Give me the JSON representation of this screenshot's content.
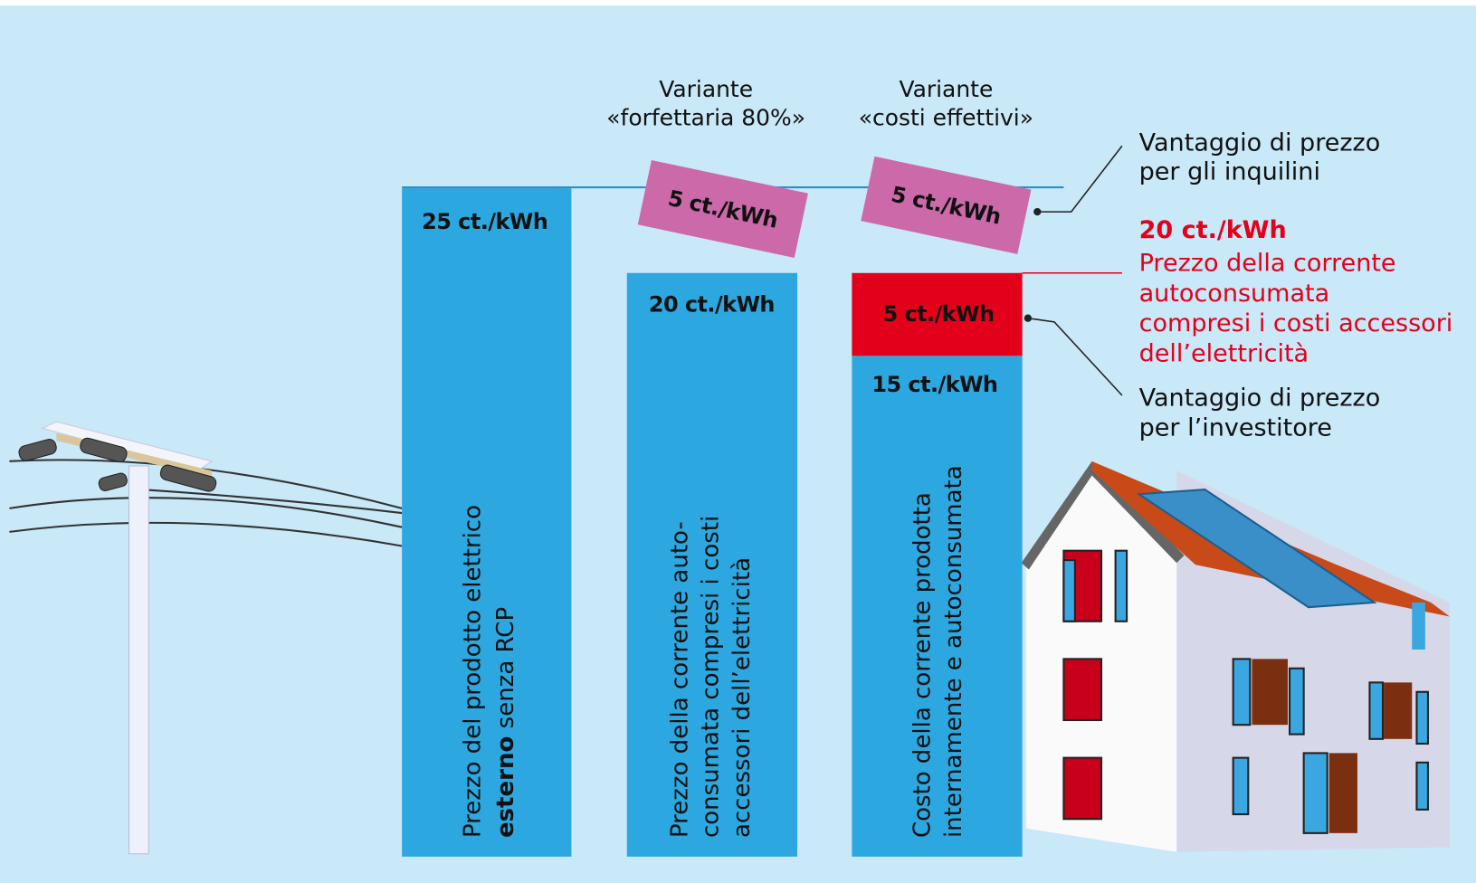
{
  "headers": [
    {
      "lines": [
        "Variante",
        "«forfettaria 80%»"
      ]
    },
    {
      "lines": [
        "Variante",
        "«costi effettivi»"
      ]
    }
  ],
  "bars": [
    {
      "value_label": "25 ct./kWh",
      "caption": [
        "Prezzo del prodotto elettrico"
      ],
      "caption_bold": "esterno",
      "caption_rest": "senza RCP"
    },
    {
      "value_label": "20 ct./kWh",
      "top_label": "5 ct./kWh",
      "caption": [
        "Prezzo della corrente auto-",
        "consumata compresi i costi",
        "accessori dell’elettricità"
      ]
    },
    {
      "value_label": "15 ct./kWh",
      "middle_label": "5 ct./kWh",
      "top_label": "5 ct./kWh",
      "caption": [
        "Costo della corrente prodotta",
        "internamente e autoconsumata"
      ]
    }
  ],
  "annotations": {
    "tenants": [
      "Vantaggio di prezzo",
      "per gli inquilini"
    ],
    "price": {
      "value": "20 ct./kWh",
      "lines": [
        "Prezzo della corrente",
        "autoconsumata",
        "compresi i costi accessori",
        "dell’elettricità"
      ]
    },
    "investor": [
      "Vantaggio di prezzo",
      "per l’investitore"
    ]
  }
}
